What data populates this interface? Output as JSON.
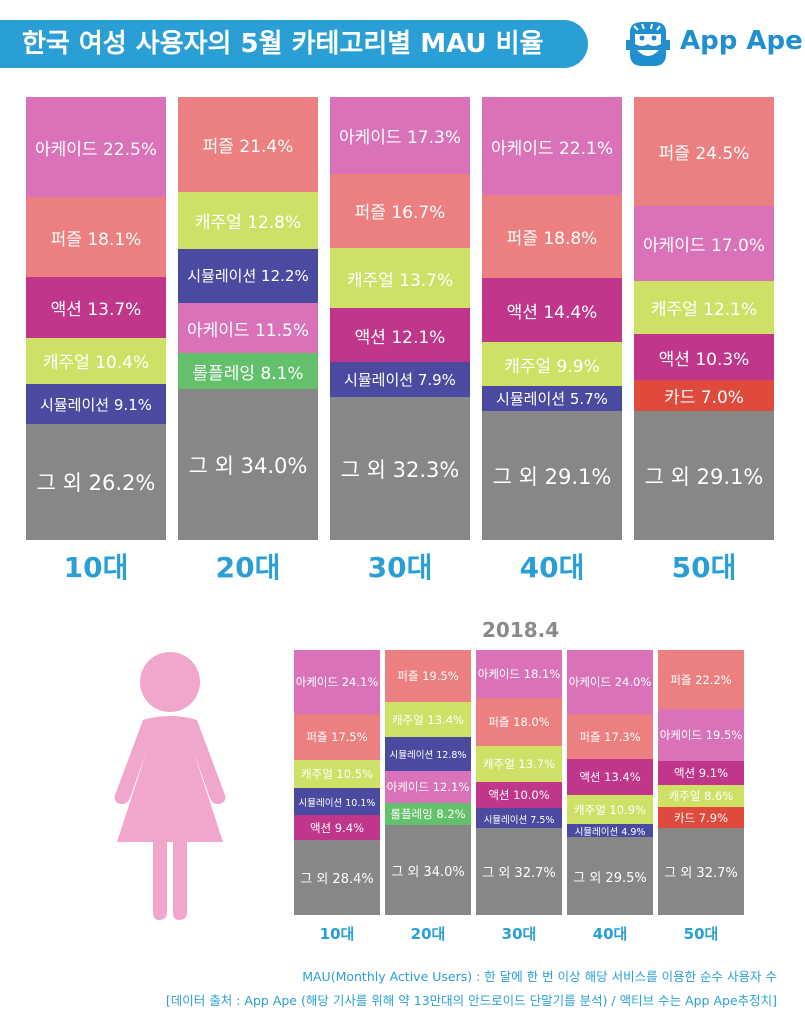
{
  "title": "한국 여성 사용자의 5월 카테고리별 MAU 비율",
  "logo": {
    "text": "App Ape"
  },
  "colors": {
    "아케이드": "#d972b8",
    "퍼즐": "#ec7f7f",
    "액션": "#c0368a",
    "캐주얼": "#cfe067",
    "시뮬레이션": "#4a4aa0",
    "롤플레잉": "#63c16b",
    "카드": "#df4a3c",
    "그 외": "#878787"
  },
  "chart_data": [
    {
      "type": "bar",
      "stacked": true,
      "categories": [
        "10대",
        "20대",
        "30대",
        "40대",
        "50대"
      ],
      "stacks": [
        [
          [
            "아케이드",
            22.5
          ],
          [
            "퍼즐",
            18.1
          ],
          [
            "액션",
            13.7
          ],
          [
            "캐주얼",
            10.4
          ],
          [
            "시뮬레이션",
            9.1
          ],
          [
            "그 외",
            26.2
          ]
        ],
        [
          [
            "퍼즐",
            21.4
          ],
          [
            "캐주얼",
            12.8
          ],
          [
            "시뮬레이션",
            12.2
          ],
          [
            "아케이드",
            11.5
          ],
          [
            "롤플레잉",
            8.1
          ],
          [
            "그 외",
            34.0
          ]
        ],
        [
          [
            "아케이드",
            17.3
          ],
          [
            "퍼즐",
            16.7
          ],
          [
            "캐주얼",
            13.7
          ],
          [
            "액션",
            12.1
          ],
          [
            "시뮬레이션",
            7.9
          ],
          [
            "그 외",
            32.3
          ]
        ],
        [
          [
            "아케이드",
            22.1
          ],
          [
            "퍼즐",
            18.8
          ],
          [
            "액션",
            14.4
          ],
          [
            "캐주얼",
            9.9
          ],
          [
            "시뮬레이션",
            5.7
          ],
          [
            "그 외",
            29.1
          ]
        ],
        [
          [
            "퍼즐",
            24.5
          ],
          [
            "아케이드",
            17.0
          ],
          [
            "캐주얼",
            12.1
          ],
          [
            "액션",
            10.3
          ],
          [
            "카드",
            7.0
          ],
          [
            "그 외",
            29.1
          ]
        ]
      ]
    },
    {
      "type": "bar",
      "stacked": true,
      "title": "2018.4",
      "categories": [
        "10대",
        "20대",
        "30대",
        "40대",
        "50대"
      ],
      "stacks": [
        [
          [
            "아케이드",
            24.1
          ],
          [
            "퍼즐",
            17.5
          ],
          [
            "캐주얼",
            10.5
          ],
          [
            "시뮬레이션",
            10.1
          ],
          [
            "액션",
            9.4
          ],
          [
            "그 외",
            28.4
          ]
        ],
        [
          [
            "퍼즐",
            19.5
          ],
          [
            "캐주얼",
            13.4
          ],
          [
            "시뮬레이션",
            12.8
          ],
          [
            "아케이드",
            12.1
          ],
          [
            "롤플레잉",
            8.2
          ],
          [
            "그 외",
            34.0
          ]
        ],
        [
          [
            "아케이드",
            18.1
          ],
          [
            "퍼즐",
            18.0
          ],
          [
            "캐주얼",
            13.7
          ],
          [
            "액션",
            10.0
          ],
          [
            "시뮬레이션",
            7.5
          ],
          [
            "그 외",
            32.7
          ]
        ],
        [
          [
            "아케이드",
            24.0
          ],
          [
            "퍼즐",
            17.3
          ],
          [
            "액션",
            13.4
          ],
          [
            "캐주얼",
            10.9
          ],
          [
            "시뮬레이션",
            4.9
          ],
          [
            "그 외",
            29.5
          ]
        ],
        [
          [
            "퍼즐",
            22.2
          ],
          [
            "아케이드",
            19.5
          ],
          [
            "액션",
            9.1
          ],
          [
            "캐주얼",
            8.6
          ],
          [
            "카드",
            7.9
          ],
          [
            "그 외",
            32.7
          ]
        ]
      ]
    }
  ],
  "footnotes": [
    "MAU(Monthly Active Users) : 한 달에 한 번 이상 해당 서비스를 이용한 순수 사용자 수",
    "[데이터 출처 : App Ape (해당 기사를 위해 약 13만대의 안드로이드 단말기를 분석) / 액티브 수는 App Ape추정치]"
  ]
}
